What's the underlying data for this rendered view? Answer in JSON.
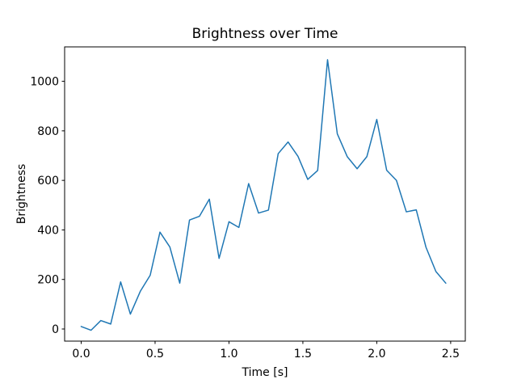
{
  "figure": {
    "background": "#ffffff"
  },
  "chart_data": {
    "type": "line",
    "title": "Brightness over Time",
    "xlabel": "Time [s]",
    "ylabel": "Brightness",
    "grid": false,
    "legend": "none",
    "xlim": [
      -0.112,
      2.599
    ],
    "ylim": [
      -49,
      1139
    ],
    "xticks": {
      "values": [
        0.0,
        0.5,
        1.0,
        1.5,
        2.0,
        2.5
      ],
      "labels": [
        "0.0",
        "0.5",
        "1.0",
        "1.5",
        "2.0",
        "2.5"
      ]
    },
    "yticks": {
      "values": [
        0,
        200,
        400,
        600,
        800,
        1000
      ],
      "labels": [
        "0",
        "200",
        "400",
        "600",
        "800",
        "1000"
      ]
    },
    "series": [
      {
        "name": "brightness",
        "color": "#1f77b4",
        "line_width": 1.5,
        "x": [
          0.0,
          0.067,
          0.133,
          0.2,
          0.267,
          0.333,
          0.4,
          0.467,
          0.533,
          0.6,
          0.667,
          0.733,
          0.8,
          0.867,
          0.933,
          1.0,
          1.067,
          1.133,
          1.2,
          1.267,
          1.333,
          1.4,
          1.467,
          1.533,
          1.6,
          1.667,
          1.733,
          1.8,
          1.867,
          1.933,
          2.0,
          2.067,
          2.133,
          2.2,
          2.267,
          2.333,
          2.4,
          2.467
        ],
        "y": [
          10,
          -5,
          34,
          20,
          190,
          60,
          152,
          217,
          391,
          331,
          185,
          440,
          455,
          524,
          285,
          433,
          410,
          587,
          468,
          480,
          708,
          755,
          697,
          604,
          640,
          1087,
          788,
          696,
          647,
          696,
          846,
          641,
          600,
          473,
          481,
          330,
          232,
          185
        ]
      }
    ]
  }
}
